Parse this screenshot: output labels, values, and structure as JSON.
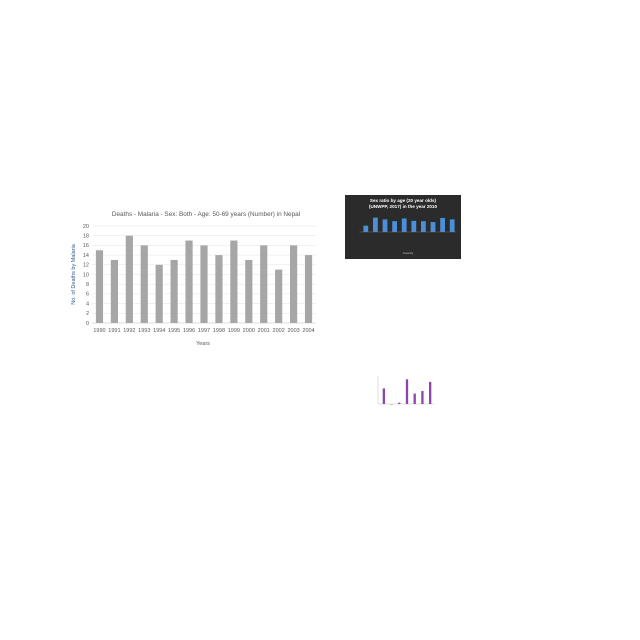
{
  "charts": {
    "main": {
      "chart_data": {
        "type": "bar",
        "title": "Deaths - Malaria - Sex: Both - Age: 50-69 years (Number) in Nepal",
        "xlabel": "Years",
        "ylabel": "No. of Deaths by Malaria",
        "categories": [
          "1990",
          "1991",
          "1992",
          "1993",
          "1994",
          "1995",
          "1996",
          "1997",
          "1998",
          "1999",
          "2000",
          "2001",
          "2002",
          "2003",
          "2004"
        ],
        "values": [
          15,
          13,
          18,
          16,
          12,
          13,
          17,
          16,
          14,
          17,
          13,
          16,
          11,
          16,
          14
        ],
        "ylim": [
          0,
          20
        ],
        "yticks": [
          0,
          2,
          4,
          6,
          8,
          10,
          12,
          14,
          16,
          18,
          20
        ],
        "grid": true,
        "bar_color": "#a6a6a6",
        "text_color": "#595959"
      }
    },
    "small": {
      "chart_data": {
        "type": "bar",
        "title": "Sex ratio by age (20 year olds) (UNWPP, 2017) in the year 2010",
        "xlabel": "Country",
        "values": [
          0.35,
          0.8,
          0.7,
          0.6,
          0.75,
          0.62,
          0.6,
          0.55,
          0.78,
          0.7
        ],
        "ylim": [
          0,
          1
        ],
        "background": "#2b2b2b",
        "bar_color": "#4a90d9",
        "text_color": "#ffffff"
      }
    },
    "tiny": {
      "chart_data": {
        "type": "bar",
        "values": [
          0.6,
          0,
          0.05,
          0.95,
          0.4,
          0.5,
          0.85
        ],
        "ylim": [
          0,
          1
        ],
        "bar_color": "#8e44ad"
      }
    }
  }
}
